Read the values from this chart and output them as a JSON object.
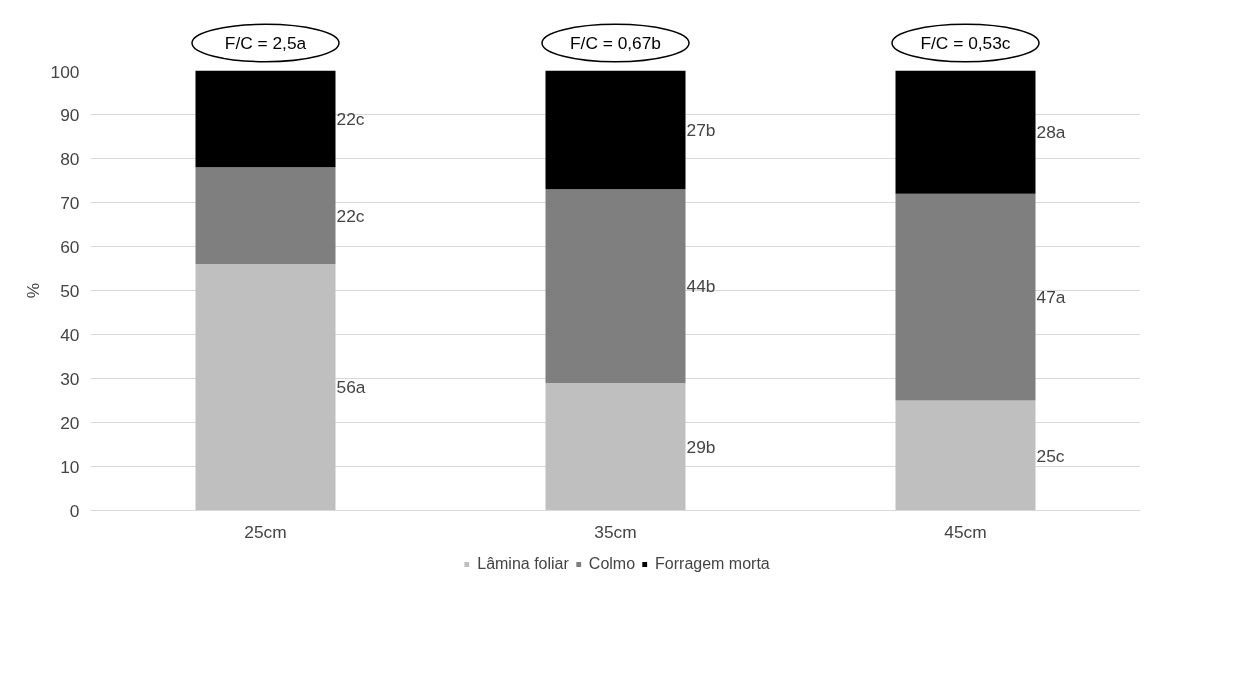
{
  "chart_data": {
    "type": "bar",
    "stacked": true,
    "ylabel": "%",
    "categories": [
      "25cm",
      "35cm",
      "45cm"
    ],
    "series": [
      {
        "name": "Lâmina foliar",
        "color": "#bfbfbf",
        "values": [
          56,
          29,
          25
        ],
        "value_labels": [
          "56a",
          "29b",
          "25c"
        ]
      },
      {
        "name": "Colmo",
        "color": "#7f7f7f",
        "values": [
          22,
          44,
          47
        ],
        "value_labels": [
          "22c",
          "44b",
          "47a"
        ]
      },
      {
        "name": "Forragem morta",
        "color": "#000000",
        "values": [
          22,
          27,
          28
        ],
        "value_labels": [
          "22c",
          "27b",
          "28a"
        ]
      }
    ],
    "annotations": [
      "F/C = 2,5a",
      "F/C = 0,67b",
      "F/C = 0,53c"
    ],
    "ylim": [
      0,
      100
    ],
    "yticks": [
      0,
      10,
      20,
      30,
      40,
      50,
      60,
      70,
      80,
      90,
      100
    ],
    "grid": "y",
    "legend": "bottom"
  }
}
